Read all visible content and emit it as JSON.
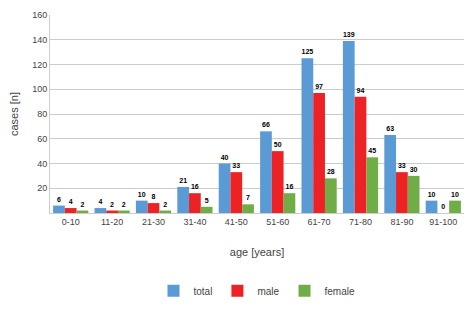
{
  "chart_data": {
    "type": "bar",
    "categories": [
      "0-10",
      "11-20",
      "21-30",
      "31-40",
      "41-50",
      "51-60",
      "61-70",
      "71-80",
      "81-90",
      "91-100"
    ],
    "series": [
      {
        "name": "total",
        "color": "#5b9bd5",
        "values": [
          6,
          4,
          10,
          21,
          40,
          66,
          125,
          139,
          63,
          10
        ]
      },
      {
        "name": "male",
        "color": "#ed2224",
        "values": [
          4,
          2,
          8,
          16,
          33,
          50,
          97,
          94,
          33,
          0
        ]
      },
      {
        "name": "female",
        "color": "#70ad47",
        "values": [
          2,
          2,
          2,
          5,
          7,
          16,
          28,
          45,
          30,
          10
        ]
      }
    ],
    "xlabel": "age [years]",
    "ylabel": "cases [n]",
    "ylim": [
      0,
      160
    ],
    "yticks": [
      20,
      40,
      60,
      80,
      100,
      120,
      140,
      160
    ],
    "grid": true,
    "legend": "bottom",
    "data_labels": true
  }
}
